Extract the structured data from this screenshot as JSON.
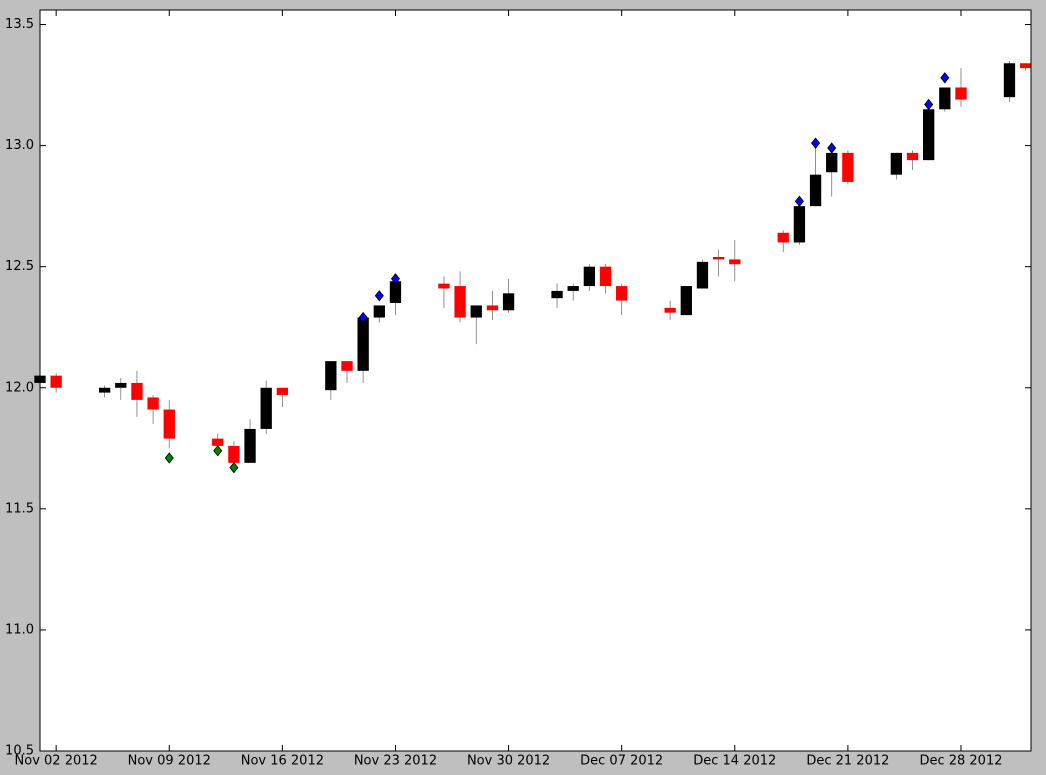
{
  "chart_data": {
    "type": "candlestick",
    "x": [
      "2012-11-01",
      "2012-11-02",
      "2012-11-05",
      "2012-11-06",
      "2012-11-07",
      "2012-11-08",
      "2012-11-09",
      "2012-11-12",
      "2012-11-13",
      "2012-11-14",
      "2012-11-15",
      "2012-11-16",
      "2012-11-19",
      "2012-11-20",
      "2012-11-21",
      "2012-11-22",
      "2012-11-23",
      "2012-11-26",
      "2012-11-27",
      "2012-11-28",
      "2012-11-29",
      "2012-11-30",
      "2012-12-03",
      "2012-12-04",
      "2012-12-05",
      "2012-12-06",
      "2012-12-07",
      "2012-12-10",
      "2012-12-11",
      "2012-12-12",
      "2012-12-13",
      "2012-12-14",
      "2012-12-17",
      "2012-12-18",
      "2012-12-19",
      "2012-12-20",
      "2012-12-21",
      "2012-12-24",
      "2012-12-25",
      "2012-12-26",
      "2012-12-27",
      "2012-12-28",
      "2012-12-31",
      "2013-01-01"
    ],
    "open": [
      12.02,
      12.05,
      11.98,
      12.0,
      12.02,
      11.96,
      11.91,
      11.79,
      11.76,
      11.69,
      11.83,
      12.0,
      11.99,
      12.11,
      12.07,
      12.29,
      12.35,
      12.43,
      12.42,
      12.29,
      12.34,
      12.32,
      12.37,
      12.4,
      12.42,
      12.5,
      12.42,
      12.33,
      12.3,
      12.41,
      12.54,
      12.53,
      12.64,
      12.6,
      12.75,
      12.89,
      12.97,
      12.88,
      12.97,
      12.94,
      13.15,
      13.24,
      13.2,
      13.34
    ],
    "close": [
      12.05,
      12.0,
      12.0,
      12.02,
      11.95,
      11.91,
      11.79,
      11.76,
      11.69,
      11.83,
      12.0,
      11.97,
      12.11,
      12.07,
      12.29,
      12.34,
      12.44,
      12.41,
      12.29,
      12.34,
      12.32,
      12.39,
      12.4,
      12.42,
      12.5,
      12.42,
      12.36,
      12.31,
      12.42,
      12.52,
      12.53,
      12.51,
      12.6,
      12.75,
      12.88,
      12.97,
      12.85,
      12.97,
      12.94,
      13.15,
      13.24,
      13.19,
      13.34,
      13.32
    ],
    "high": [
      12.07,
      12.06,
      12.01,
      12.04,
      12.07,
      11.97,
      11.95,
      11.81,
      11.78,
      11.87,
      12.03,
      12.0,
      12.11,
      12.11,
      12.29,
      12.34,
      12.45,
      12.46,
      12.48,
      12.34,
      12.4,
      12.45,
      12.43,
      12.43,
      12.51,
      12.51,
      12.43,
      12.36,
      12.42,
      12.53,
      12.57,
      12.61,
      12.65,
      12.76,
      12.99,
      12.98,
      12.98,
      12.97,
      12.98,
      13.16,
      13.24,
      13.32,
      13.35,
      13.34
    ],
    "low": [
      11.99,
      11.98,
      11.96,
      11.95,
      11.88,
      11.85,
      11.75,
      11.75,
      11.67,
      11.69,
      11.81,
      11.92,
      11.95,
      12.02,
      12.02,
      12.27,
      12.3,
      12.33,
      12.27,
      12.18,
      12.28,
      12.31,
      12.33,
      12.36,
      12.4,
      12.39,
      12.3,
      12.28,
      12.3,
      12.41,
      12.46,
      12.44,
      12.56,
      12.59,
      12.75,
      12.79,
      12.84,
      12.86,
      12.9,
      12.94,
      13.14,
      13.16,
      13.18,
      13.31
    ],
    "up_color": "#000000",
    "down_color": "#ff0000",
    "markers": [
      {
        "color": "#0000ff",
        "x": [
          "2012-11-21",
          "2012-11-22",
          "2012-11-23",
          "2012-12-18",
          "2012-12-19",
          "2012-12-20",
          "2012-12-26",
          "2012-12-27"
        ],
        "values": [
          12.29,
          12.38,
          12.45,
          12.77,
          13.01,
          12.99,
          13.17,
          13.28
        ]
      },
      {
        "color": "#008000",
        "x": [
          "2012-11-09",
          "2012-11-12",
          "2012-11-13"
        ],
        "values": [
          11.71,
          11.74,
          11.67
        ]
      }
    ],
    "xlim": [
      "2012-11-01T00:00",
      "2013-01-01T08:00"
    ],
    "xticks": [
      {
        "value": "2012-11-02",
        "label": "Nov 02 2012"
      },
      {
        "value": "2012-11-09",
        "label": "Nov 09 2012"
      },
      {
        "value": "2012-11-16",
        "label": "Nov 16 2012"
      },
      {
        "value": "2012-11-23",
        "label": "Nov 23 2012"
      },
      {
        "value": "2012-11-30",
        "label": "Nov 30 2012"
      },
      {
        "value": "2012-12-07",
        "label": "Dec 07 2012"
      },
      {
        "value": "2012-12-14",
        "label": "Dec 14 2012"
      },
      {
        "value": "2012-12-21",
        "label": "Dec 21 2012"
      },
      {
        "value": "2012-12-28",
        "label": "Dec 28 2012"
      }
    ],
    "ylim": [
      10.5,
      13.56
    ],
    "yticks": [
      10.5,
      {
        "value": 11,
        "label": "11.0"
      },
      11.5,
      {
        "value": 12,
        "label": "12.0"
      },
      12.5,
      {
        "value": 13,
        "label": "13.0"
      },
      13.5
    ]
  }
}
